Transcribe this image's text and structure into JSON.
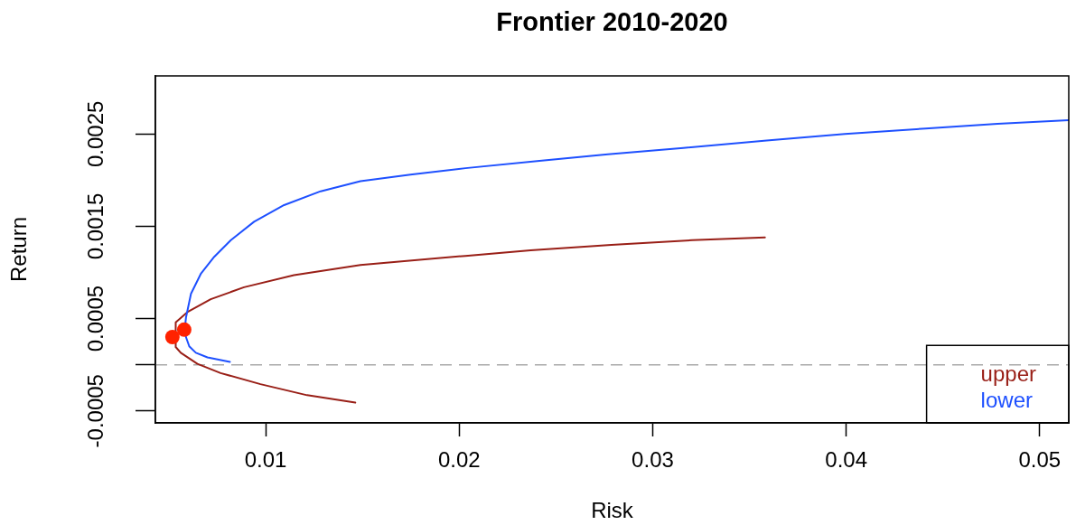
{
  "chart_data": {
    "type": "line",
    "title": "Frontier 2010-2020",
    "xlabel": "Risk",
    "ylabel": "Return",
    "xlim": [
      0.0043,
      0.0515
    ],
    "xticks": [
      0.01,
      0.02,
      0.03,
      0.04,
      0.05
    ],
    "ylim": [
      -0.00063,
      0.00313
    ],
    "yticks": [
      -0.0005,
      {
        "value": 0,
        "label": null
      },
      0.0005,
      0.0015,
      0.0025
    ],
    "marker": "none",
    "legend": "bottom right",
    "ref_lines": [
      {
        "axis": "y",
        "value": 0,
        "color": "#aaaaaa",
        "line_style": "dashed"
      }
    ],
    "series": [
      {
        "name": "upper",
        "color": "#991f17",
        "x": [
          0.01463,
          0.01214,
          0.00973,
          0.00767,
          0.00647,
          0.00561,
          0.00536,
          0.00535,
          0.00595,
          0.00716,
          0.00888,
          0.01146,
          0.0149,
          0.02032,
          0.02369,
          0.02786,
          0.03204,
          0.0358
        ],
        "values": [
          -0.00041,
          -0.00033,
          -0.00021,
          -9e-05,
          1e-05,
          0.00013,
          0.00019,
          0.00046,
          0.00057,
          0.00071,
          0.00084,
          0.00097,
          0.00108,
          0.00118,
          0.00124,
          0.0013,
          0.00135,
          0.00138
        ]
      },
      {
        "name": "lower",
        "color": "#1e50ff",
        "x": [
          0.00815,
          0.00699,
          0.00639,
          0.00605,
          0.00588,
          0.00583,
          0.00588,
          0.00614,
          0.00666,
          0.00734,
          0.0082,
          0.0094,
          0.01095,
          0.01284,
          0.0149,
          0.01748,
          0.02032,
          0.02415,
          0.02768,
          0.03158,
          0.03589,
          0.03993,
          0.0441,
          0.04782,
          0.0515
        ],
        "values": [
          3e-05,
          8e-05,
          0.00013,
          0.0002,
          0.0003,
          0.00041,
          0.00051,
          0.00077,
          0.00099,
          0.00117,
          0.00135,
          0.00155,
          0.00173,
          0.00188,
          0.00199,
          0.00206,
          0.00213,
          0.00221,
          0.00228,
          0.00235,
          0.00243,
          0.0025,
          0.00256,
          0.00261,
          0.00265
        ]
      },
      {
        "type": "scatter",
        "color": "#ff2200",
        "marker": "circle",
        "x": [
          0.00518,
          0.00579
        ],
        "values": [
          0.0003,
          0.00038
        ]
      }
    ]
  }
}
